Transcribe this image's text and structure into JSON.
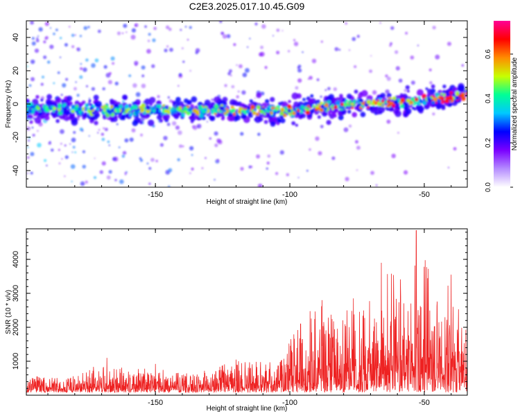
{
  "figure_title": "C2E3.2025.017.10.45.G09",
  "colors": {
    "snr_line": "#ee2222",
    "frame": "#000000",
    "background": "#ffffff"
  },
  "chart_data": [
    {
      "type": "heatmap",
      "title": "C2E3.2025.017.10.45.G09",
      "xlabel": "Height of straight line (km)",
      "ylabel": "Frequency (Hz)",
      "xlim": [
        -198,
        -34
      ],
      "ylim": [
        -50,
        50
      ],
      "x_ticks": [
        -150,
        -100,
        -50
      ],
      "x_tick_labels": [
        "-150",
        "-100",
        "-50"
      ],
      "y_ticks": [
        40,
        20,
        0,
        -20,
        -40
      ],
      "y_tick_labels": [
        "40",
        "20",
        "0",
        "-20",
        "-40"
      ],
      "ridge_description": "Concentrated spectral band near 0 Hz, drifting from about -3 Hz at -198 km to about +6 Hz at -34 km",
      "ridge_points": [
        {
          "x": -198,
          "y": -3
        },
        {
          "x": -150,
          "y": -4
        },
        {
          "x": -100,
          "y": -4
        },
        {
          "x": -75,
          "y": 0
        },
        {
          "x": -50,
          "y": 2
        },
        {
          "x": -34,
          "y": 6
        }
      ],
      "colorbar": {
        "label": "Normalized spectral amplitude",
        "range": [
          0.0,
          0.75
        ],
        "ticks": [
          0.0,
          0.2,
          0.4,
          0.6
        ],
        "tick_labels": [
          "0.0",
          "0.2",
          "0.4",
          "0.6"
        ],
        "colormap": [
          "#ffffff",
          "#b58cff",
          "#7a00ff",
          "#0000ff",
          "#00c8ff",
          "#00ff96",
          "#c8ff00",
          "#ff8c00",
          "#ff0000",
          "#ff0096"
        ]
      }
    },
    {
      "type": "line",
      "xlabel": "Height of straight line (km)",
      "ylabel": "SNR (10 * v/v)",
      "xlim": [
        -198,
        -34
      ],
      "ylim": [
        0,
        4900
      ],
      "x_ticks": [
        -150,
        -100,
        -50
      ],
      "x_tick_labels": [
        "-150",
        "-100",
        "-50"
      ],
      "y_ticks": [
        1000,
        2000,
        3000,
        4000
      ],
      "y_tick_labels": [
        "1000",
        "2000",
        "3000",
        "4000"
      ],
      "series_name": "SNR",
      "envelope": [
        {
          "x": -198,
          "y": 500
        },
        {
          "x": -180,
          "y": 550
        },
        {
          "x": -170,
          "y": 900
        },
        {
          "x": -160,
          "y": 750
        },
        {
          "x": -150,
          "y": 850
        },
        {
          "x": -140,
          "y": 650
        },
        {
          "x": -130,
          "y": 750
        },
        {
          "x": -120,
          "y": 1000
        },
        {
          "x": -110,
          "y": 950
        },
        {
          "x": -102,
          "y": 1200
        },
        {
          "x": -100,
          "y": 1900
        },
        {
          "x": -90,
          "y": 2600
        },
        {
          "x": -80,
          "y": 2500
        },
        {
          "x": -72,
          "y": 3000
        },
        {
          "x": -65,
          "y": 3700
        },
        {
          "x": -55,
          "y": 3300
        },
        {
          "x": -53,
          "y": 4900
        },
        {
          "x": -48,
          "y": 3500
        },
        {
          "x": -40,
          "y": 3000
        },
        {
          "x": -34,
          "y": 1800
        }
      ],
      "peaks": [
        {
          "x": -168,
          "y": 1100
        },
        {
          "x": -150,
          "y": 920
        },
        {
          "x": -120,
          "y": 1050
        },
        {
          "x": -96,
          "y": 2100
        },
        {
          "x": -88,
          "y": 2800
        },
        {
          "x": -66,
          "y": 3900
        },
        {
          "x": -53,
          "y": 4850
        },
        {
          "x": -40,
          "y": 3550
        }
      ]
    }
  ]
}
